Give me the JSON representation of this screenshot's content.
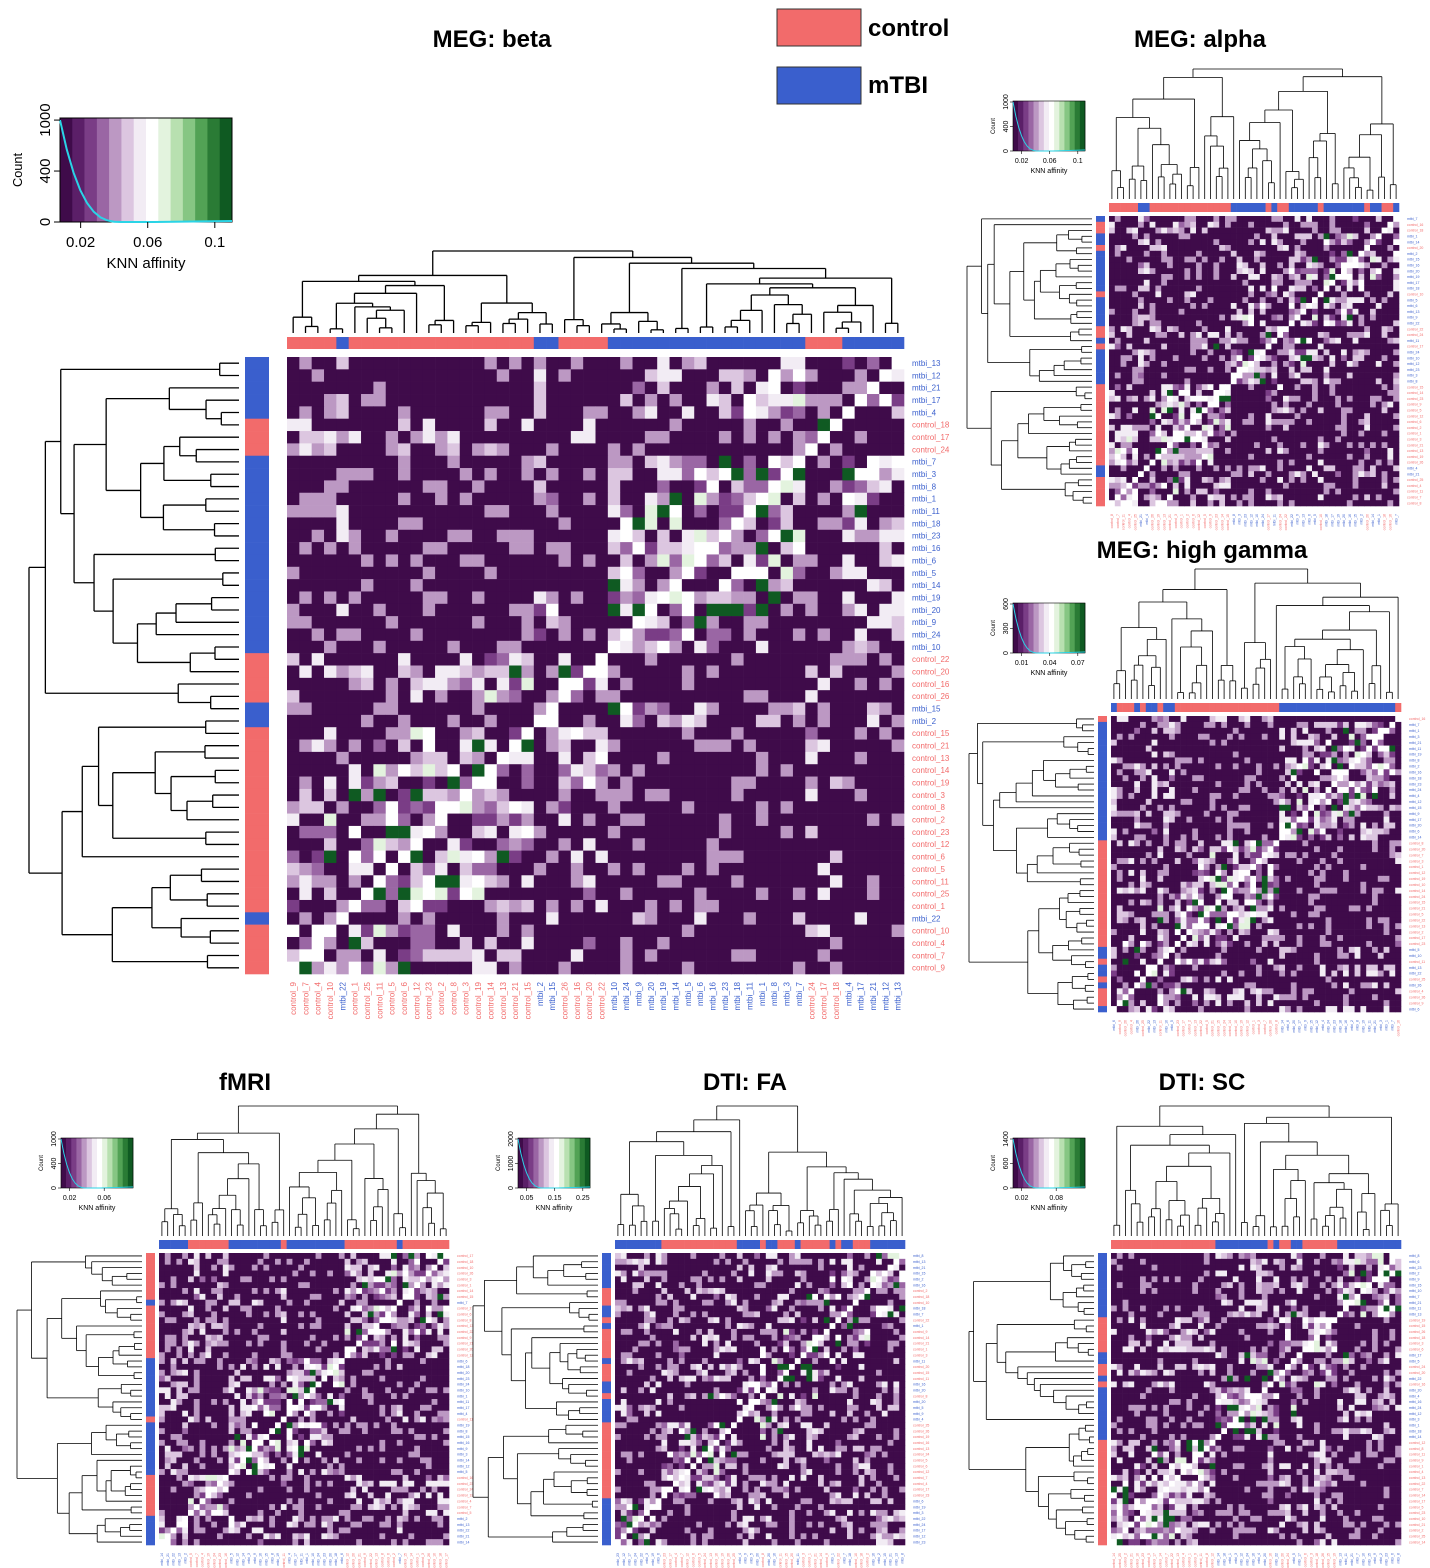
{
  "legend": {
    "items": [
      {
        "label": "control",
        "color": "#f26b6b"
      },
      {
        "label": "mTBI",
        "color": "#3a5fcd"
      }
    ]
  },
  "colors": {
    "control": "#f26b6b",
    "mtbi": "#3a5fcd",
    "histogram_line": "#2ad4e6",
    "scale": [
      "#3f0b4a",
      "#5b1f68",
      "#7a3d86",
      "#9a66a4",
      "#bc98c3",
      "#dcc6e0",
      "#f2ecf4",
      "#ffffff",
      "#e3f3de",
      "#b8e0b0",
      "#86c683",
      "#52a255",
      "#2a7b35",
      "#0f5a22"
    ]
  },
  "shared": {
    "count_label": "Count",
    "x_label": "KNN affinity"
  },
  "chart_data": [
    {
      "type": "heatmap",
      "title": "MEG: beta",
      "key_ticks": [
        "0.02",
        "0.06",
        "0.1"
      ],
      "count_ticks": [
        "0",
        "400",
        "1000"
      ],
      "rows": [
        "mtbi_13",
        "mtbi_12",
        "mtbi_21",
        "mtbi_17",
        "mtbi_4",
        "control_18",
        "control_17",
        "control_24",
        "mtbi_7",
        "mtbi_3",
        "mtbi_8",
        "mtbi_1",
        "mtbi_11",
        "mtbi_18",
        "mtbi_23",
        "mtbi_16",
        "mtbi_6",
        "mtbi_5",
        "mtbi_14",
        "mtbi_19",
        "mtbi_20",
        "mtbi_9",
        "mtbi_24",
        "mtbi_10",
        "control_22",
        "control_20",
        "control_16",
        "control_26",
        "mtbi_15",
        "mtbi_2",
        "control_15",
        "control_21",
        "control_13",
        "control_14",
        "control_19",
        "control_3",
        "control_8",
        "control_2",
        "control_23",
        "control_12",
        "control_6",
        "control_5",
        "control_11",
        "control_25",
        "control_1",
        "mtbi_22",
        "control_10",
        "control_4",
        "control_7",
        "control_9"
      ],
      "columns": [
        "control_9",
        "control_7",
        "control_4",
        "control_10",
        "mtbi_22",
        "control_1",
        "control_25",
        "control_11",
        "control_5",
        "control_6",
        "control_12",
        "control_23",
        "control_2",
        "control_8",
        "control_3",
        "control_19",
        "control_14",
        "control_13",
        "control_21",
        "control_15",
        "mtbi_2",
        "mtbi_15",
        "control_26",
        "control_16",
        "control_20",
        "control_22",
        "mtbi_10",
        "mtbi_24",
        "mtbi_9",
        "mtbi_20",
        "mtbi_19",
        "mtbi_14",
        "mtbi_5",
        "mtbi_6",
        "mtbi_16",
        "mtbi_23",
        "mtbi_18",
        "mtbi_11",
        "mtbi_1",
        "mtbi_8",
        "mtbi_3",
        "mtbi_7",
        "control_24",
        "control_17",
        "control_18",
        "mtbi_4",
        "mtbi_17",
        "mtbi_21",
        "mtbi_12",
        "mtbi_13"
      ]
    },
    {
      "type": "heatmap",
      "title": "MEG: alpha",
      "key_ticks": [
        "0.02",
        "0.06",
        "0.1"
      ],
      "count_ticks": [
        "0",
        "400",
        "1000"
      ],
      "rows": [
        "mtbi_7",
        "control_16",
        "control_18",
        "mtbi_1",
        "mtbi_14",
        "control_20",
        "mtbi_2",
        "mtbi_15",
        "mtbi_16",
        "mtbi_20",
        "mtbi_19",
        "mtbi_17",
        "mtbi_18",
        "control_10",
        "mtbi_5",
        "mtbi_6",
        "mtbi_13",
        "mtbi_9",
        "mtbi_22",
        "control_22",
        "control_24",
        "mtbi_11",
        "control_17",
        "mtbi_24",
        "mtbi_10",
        "mtbi_12",
        "mtbi_23",
        "mtbi_3",
        "mtbi_8",
        "control_15",
        "control_14",
        "control_23",
        "control_9",
        "control_5",
        "control_12",
        "control_6",
        "control_2",
        "control_1",
        "control_3",
        "control_21",
        "control_13",
        "control_19",
        "control_26",
        "mtbi_4",
        "mtbi_21",
        "control_25",
        "control_4",
        "control_11",
        "control_7",
        "control_8"
      ],
      "columns": [
        "control_8",
        "control_7",
        "control_11",
        "control_4",
        "control_25",
        "mtbi_21",
        "mtbi_4",
        "control_26",
        "control_19",
        "control_13",
        "control_21",
        "control_3",
        "control_1",
        "control_2",
        "control_6",
        "control_12",
        "control_5",
        "control_9",
        "control_23",
        "control_14",
        "control_15",
        "mtbi_8",
        "mtbi_3",
        "mtbi_23",
        "mtbi_12",
        "mtbi_10",
        "mtbi_24",
        "control_17",
        "mtbi_11",
        "control_24",
        "control_22",
        "mtbi_22",
        "mtbi_9",
        "mtbi_13",
        "mtbi_6",
        "mtbi_5",
        "control_10",
        "mtbi_18",
        "mtbi_17",
        "mtbi_19",
        "mtbi_20",
        "mtbi_16",
        "mtbi_15",
        "mtbi_2",
        "control_20",
        "mtbi_14",
        "mtbi_1",
        "control_18",
        "control_16",
        "mtbi_7"
      ]
    },
    {
      "type": "heatmap",
      "title": "MEG: high gamma",
      "key_ticks": [
        "0.01",
        "0.04",
        "0.07"
      ],
      "count_ticks": [
        "0",
        "300",
        "600"
      ],
      "rows": [
        "control_16",
        "mtbi_7",
        "mtbi_1",
        "mtbi_3",
        "mtbi_21",
        "mtbi_11",
        "mtbi_19",
        "mtbi_8",
        "mtbi_2",
        "mtbi_16",
        "mtbi_18",
        "mtbi_23",
        "mtbi_24",
        "mtbi_4",
        "mtbi_12",
        "mtbi_15",
        "mtbi_9",
        "mtbi_17",
        "mtbi_20",
        "mtbi_6",
        "mtbi_14",
        "control_8",
        "control_20",
        "control_7",
        "control_3",
        "control_1",
        "control_12",
        "control_19",
        "control_10",
        "control_14",
        "control_24",
        "control_15",
        "control_21",
        "control_5",
        "control_22",
        "control_13",
        "control_2",
        "control_17",
        "control_23",
        "mtbi_5",
        "mtbi_10",
        "control_11",
        "mtbi_13",
        "mtbi_22",
        "control_25",
        "mtbi_26",
        "control_4",
        "control_26",
        "control_9",
        "mtbi_6"
      ],
      "columns": [
        "mtbi_6",
        "control_9",
        "control_26",
        "control_4",
        "mtbi_26",
        "control_25",
        "mtbi_22",
        "mtbi_13",
        "control_11",
        "mtbi_10",
        "mtbi_5",
        "control_23",
        "control_17",
        "control_2",
        "control_13",
        "control_22",
        "control_5",
        "control_21",
        "control_15",
        "control_24",
        "control_14",
        "control_10",
        "control_19",
        "control_12",
        "control_1",
        "control_3",
        "control_7",
        "control_20",
        "control_8",
        "mtbi_14",
        "mtbi_6",
        "mtbi_20",
        "mtbi_17",
        "mtbi_9",
        "mtbi_15",
        "mtbi_12",
        "mtbi_4",
        "mtbi_24",
        "mtbi_23",
        "mtbi_18",
        "mtbi_16",
        "mtbi_2",
        "mtbi_8",
        "mtbi_19",
        "mtbi_11",
        "mtbi_21",
        "mtbi_3",
        "mtbi_1",
        "mtbi_7",
        "control_16"
      ]
    },
    {
      "type": "heatmap",
      "title": "fMRI",
      "key_ticks": [
        "0.02",
        "0.06"
      ],
      "count_ticks": [
        "0",
        "400",
        "1000"
      ],
      "rows": [
        "control_17",
        "control_18",
        "control_10",
        "control_26",
        "control_3",
        "control_1",
        "control_14",
        "control_15",
        "mtbi_7",
        "control_2",
        "control_6",
        "control_8",
        "control_13",
        "control_22",
        "control_9",
        "control_21",
        "control_20",
        "control_12",
        "mtbi_6",
        "mtbi_18",
        "mtbi_20",
        "mtbi_23",
        "mtbi_24",
        "mtbi_10",
        "mtbi_1",
        "mtbi_11",
        "mtbi_17",
        "mtbi_4",
        "control_11",
        "mtbi_19",
        "mtbi_8",
        "mtbi_15",
        "mtbi_16",
        "mtbi_9",
        "mtbi_3",
        "mtbi_14",
        "mtbi_12",
        "mtbi_5",
        "control_16",
        "control_23",
        "control_24",
        "control_19",
        "control_4",
        "control_7",
        "control_5",
        "mtbi_2",
        "mtbi_13",
        "mtbi_22",
        "mtbi_21",
        "mtbi_14"
      ],
      "columns": [
        "mtbi_14",
        "mtbi_21",
        "mtbi_22",
        "mtbi_13",
        "mtbi_2",
        "control_5",
        "control_7",
        "control_4",
        "control_19",
        "control_24",
        "control_23",
        "control_16",
        "mtbi_5",
        "mtbi_12",
        "mtbi_14",
        "mtbi_3",
        "mtbi_9",
        "mtbi_16",
        "mtbi_15",
        "mtbi_8",
        "mtbi_19",
        "control_11",
        "mtbi_4",
        "mtbi_17",
        "mtbi_11",
        "mtbi_1",
        "mtbi_10",
        "mtbi_24",
        "mtbi_23",
        "mtbi_20",
        "mtbi_18",
        "mtbi_6",
        "control_12",
        "control_20",
        "control_21",
        "control_9",
        "control_22",
        "control_13",
        "control_8",
        "control_6",
        "control_2",
        "mtbi_7",
        "control_15",
        "control_14",
        "control_1",
        "control_3",
        "control_26",
        "control_10",
        "control_18",
        "control_17"
      ]
    },
    {
      "type": "heatmap",
      "title": "DTI: FA",
      "key_ticks": [
        "0.05",
        "0.15",
        "0.25"
      ],
      "count_ticks": [
        "0",
        "1000",
        "2000"
      ],
      "rows": [
        "mtbi_8",
        "mtbi_13",
        "mtbi_21",
        "mtbi_15",
        "mtbi_2",
        "mtbi_16",
        "control_2",
        "control_18",
        "control_10",
        "mtbi_18",
        "mtbi_7",
        "control_22",
        "mtbi_1",
        "control_9",
        "control_14",
        "control_21",
        "control_1",
        "control_3",
        "mtbi_11",
        "control_20",
        "control_15",
        "control_11",
        "mtbi_16",
        "mtbi_20",
        "control_8",
        "mtbi_20",
        "mtbi_5",
        "mtbi_9",
        "mtbi_4",
        "control_25",
        "control_26",
        "control_19",
        "control_16",
        "control_13",
        "control_24",
        "control_5",
        "control_6",
        "control_12",
        "control_7",
        "control_4",
        "control_17",
        "control_23",
        "mtbi_6",
        "mtbi_19",
        "mtbi_3",
        "mtbi_22",
        "mtbi_24",
        "mtbi_17",
        "mtbi_12",
        "mtbi_23"
      ],
      "columns": [
        "mtbi_23",
        "mtbi_12",
        "mtbi_17",
        "mtbi_24",
        "mtbi_22",
        "mtbi_3",
        "mtbi_19",
        "mtbi_6",
        "control_23",
        "control_17",
        "control_4",
        "control_7",
        "control_12",
        "control_6",
        "control_5",
        "control_24",
        "control_13",
        "control_16",
        "control_19",
        "control_26",
        "control_25",
        "mtbi_4",
        "mtbi_9",
        "mtbi_5",
        "mtbi_20",
        "control_8",
        "mtbi_20",
        "mtbi_16",
        "control_11",
        "control_15",
        "control_20",
        "mtbi_11",
        "control_3",
        "control_1",
        "control_21",
        "control_14",
        "control_9",
        "mtbi_1",
        "control_22",
        "mtbi_7",
        "mtbi_18",
        "control_10",
        "control_18",
        "control_2",
        "mtbi_16",
        "mtbi_2",
        "mtbi_15",
        "mtbi_21",
        "mtbi_13",
        "mtbi_8"
      ]
    },
    {
      "type": "heatmap",
      "title": "DTI: SC",
      "key_ticks": [
        "0.02",
        "0.08"
      ],
      "count_ticks": [
        "0",
        "600",
        "1400"
      ],
      "rows": [
        "mtbi_8",
        "mtbi_6",
        "mtbi_23",
        "mtbi_2",
        "mtbi_9",
        "mtbi_15",
        "mtbi_10",
        "mtbi_7",
        "mtbi_21",
        "mtbi_11",
        "mtbi_13",
        "control_19",
        "control_15",
        "control_26",
        "control_18",
        "control_3",
        "control_6",
        "mtbi_17",
        "mtbi_5",
        "control_24",
        "control_20",
        "mtbi_22",
        "control_16",
        "mtbi_20",
        "mtbi_4",
        "mtbi_16",
        "mtbi_24",
        "mtbi_12",
        "mtbi_3",
        "mtbi_1",
        "mtbi_18",
        "mtbi_14",
        "control_12",
        "control_8",
        "control_11",
        "control_9",
        "control_1",
        "control_4",
        "control_13",
        "control_22",
        "control_7",
        "control_14",
        "control_17",
        "control_5",
        "control_23",
        "control_10",
        "control_21",
        "control_2",
        "control_25",
        "control_14"
      ],
      "columns": [
        "control_14",
        "control_25",
        "control_2",
        "control_21",
        "control_10",
        "control_23",
        "control_5",
        "control_17",
        "control_14",
        "control_7",
        "control_22",
        "control_13",
        "control_4",
        "control_1",
        "control_9",
        "control_11",
        "control_8",
        "control_12",
        "mtbi_14",
        "mtbi_18",
        "mtbi_1",
        "mtbi_3",
        "mtbi_12",
        "mtbi_24",
        "mtbi_16",
        "mtbi_4",
        "mtbi_20",
        "control_16",
        "mtbi_22",
        "control_20",
        "control_24",
        "mtbi_5",
        "mtbi_17",
        "control_6",
        "control_3",
        "control_18",
        "control_26",
        "control_15",
        "control_19",
        "mtbi_13",
        "mtbi_11",
        "mtbi_21",
        "mtbi_7",
        "mtbi_10",
        "mtbi_15",
        "mtbi_9",
        "mtbi_2",
        "mtbi_23",
        "mtbi_6",
        "mtbi_8"
      ]
    }
  ]
}
